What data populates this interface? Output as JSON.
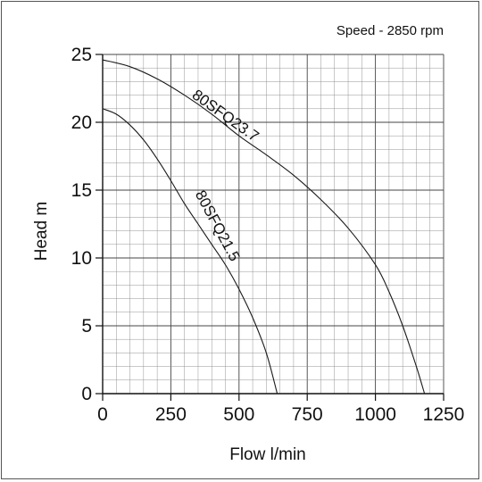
{
  "chart_data": {
    "type": "line",
    "annotation": "Speed - 2850 rpm",
    "xlabel": "Flow l/min",
    "ylabel": "Head m",
    "xlim": [
      0,
      1250
    ],
    "ylim": [
      0,
      25
    ],
    "x_ticks": [
      0,
      250,
      500,
      750,
      1000,
      1250
    ],
    "y_ticks": [
      0,
      5,
      10,
      15,
      20,
      25
    ],
    "x_tick_labels": [
      "0",
      "250",
      "500",
      "750",
      "1000",
      "1250"
    ],
    "y_tick_labels": [
      "0",
      "5",
      "10",
      "15",
      "20",
      "25"
    ],
    "grid": true,
    "series": [
      {
        "name": "80SFQ23.7",
        "x": [
          0,
          100,
          200,
          300,
          400,
          500,
          600,
          700,
          800,
          900,
          1000,
          1050,
          1100,
          1150,
          1180
        ],
        "y": [
          24.6,
          24.1,
          23.2,
          22.0,
          20.6,
          19.0,
          17.6,
          16.1,
          14.3,
          12.2,
          9.5,
          7.5,
          5.0,
          2.0,
          0
        ]
      },
      {
        "name": "80SFQ21.5",
        "x": [
          0,
          50,
          100,
          150,
          200,
          250,
          300,
          350,
          400,
          450,
          500,
          550,
          600,
          640
        ],
        "y": [
          21.0,
          20.6,
          19.8,
          18.7,
          17.3,
          15.7,
          14.0,
          12.5,
          11.0,
          9.5,
          7.7,
          5.6,
          3.0,
          0
        ]
      }
    ]
  }
}
